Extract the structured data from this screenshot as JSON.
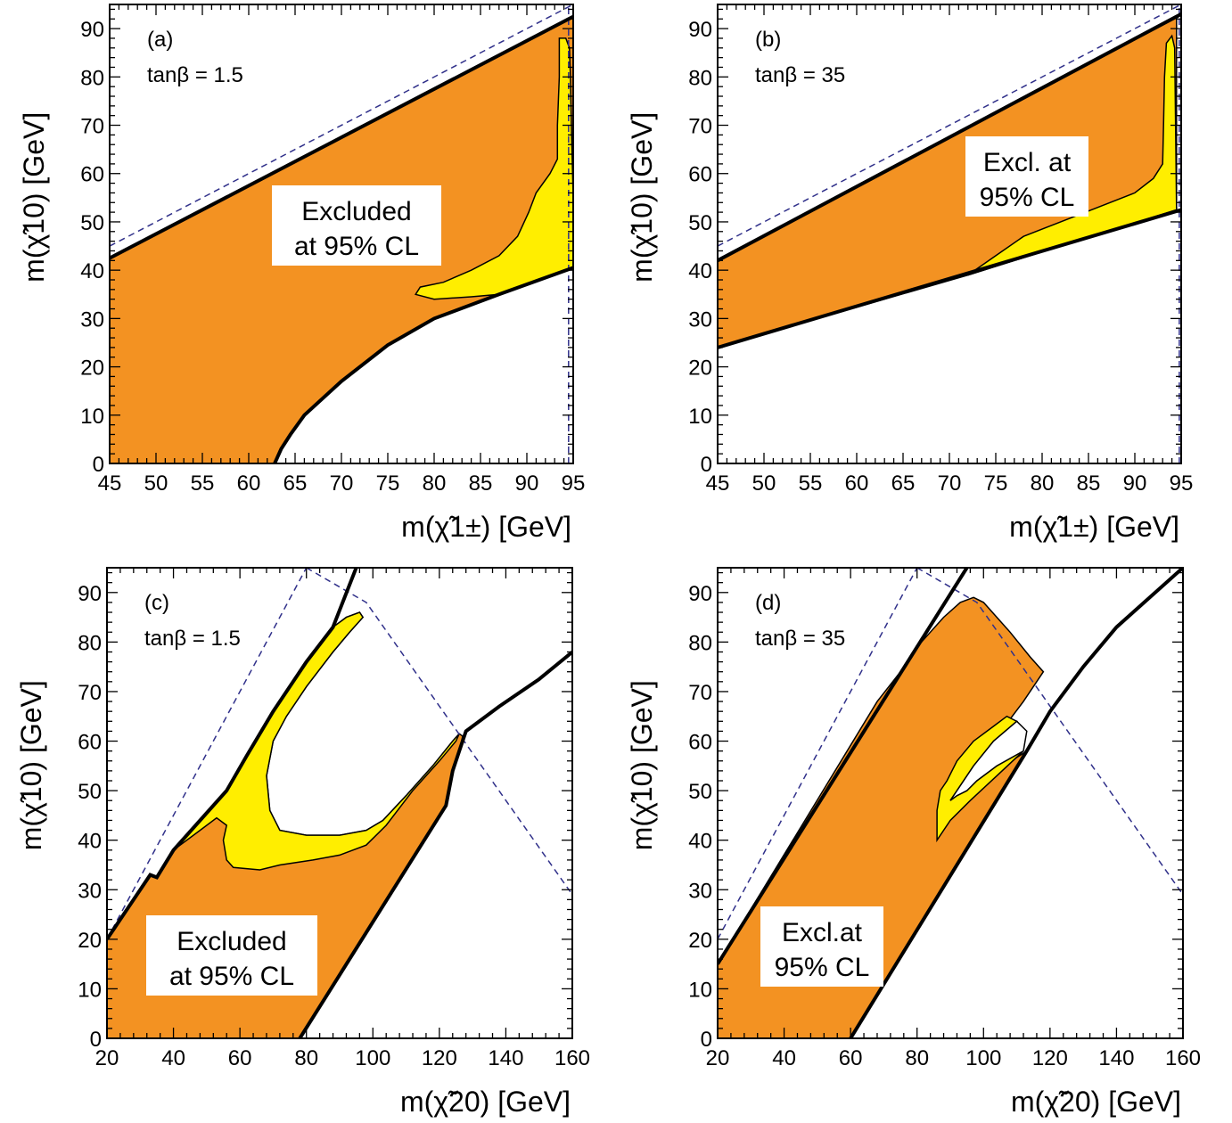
{
  "colors": {
    "excluded_fill": "#f39222",
    "yellow_fill": "#ffee00",
    "dashed_line": "#30308a",
    "boundary": "#000000"
  },
  "chart_data": [
    {
      "type": "area",
      "panel": "(a)",
      "parameter": "tanβ = 1.5",
      "annotation": [
        "Excluded",
        "at 95% CL"
      ],
      "xlabel": "m(χ̃1±) [GeV]",
      "ylabel": "m(χ̃10) [GeV]",
      "xlim": [
        45,
        95
      ],
      "ylim": [
        0,
        95
      ],
      "xticks": [
        45,
        50,
        55,
        60,
        65,
        70,
        75,
        80,
        85,
        90,
        95
      ],
      "yticks": [
        0,
        10,
        20,
        30,
        40,
        50,
        60,
        70,
        80,
        90
      ],
      "excluded_region": [
        [
          45,
          42.5
        ],
        [
          95,
          92.5
        ],
        [
          95,
          40.5
        ],
        [
          87,
          35
        ],
        [
          80,
          30
        ],
        [
          75,
          24.5
        ],
        [
          70,
          17
        ],
        [
          66,
          10
        ],
        [
          64.5,
          6
        ],
        [
          63.5,
          3
        ],
        [
          62.8,
          0
        ],
        [
          45,
          0
        ]
      ],
      "yellow_region": [
        [
          78,
          35
        ],
        [
          78.5,
          36.5
        ],
        [
          81,
          37.5
        ],
        [
          84,
          40
        ],
        [
          87,
          43
        ],
        [
          89,
          47
        ],
        [
          90.2,
          52
        ],
        [
          91,
          56
        ],
        [
          92.5,
          60
        ],
        [
          93.3,
          63
        ],
        [
          93.3,
          70
        ],
        [
          93.5,
          80
        ],
        [
          93.5,
          88
        ],
        [
          94.2,
          88
        ],
        [
          94.6,
          86
        ],
        [
          94.7,
          80
        ],
        [
          94.8,
          70
        ],
        [
          95,
          55
        ],
        [
          95,
          40.5
        ],
        [
          87,
          35
        ],
        [
          84,
          34.5
        ],
        [
          80,
          34
        ]
      ],
      "upper_line": [
        [
          45,
          42.5
        ],
        [
          95,
          92.5
        ]
      ],
      "lower_curve": [
        [
          62.8,
          0
        ],
        [
          63.5,
          3
        ],
        [
          64.5,
          6
        ],
        [
          66,
          10
        ],
        [
          70,
          17
        ],
        [
          75,
          24.5
        ],
        [
          80,
          30
        ],
        [
          87,
          35
        ],
        [
          95,
          40.5
        ]
      ],
      "dashed_lines": [
        [
          [
            45,
            45
          ],
          [
            95,
            95
          ]
        ],
        [
          [
            94.5,
            0
          ],
          [
            94.5,
            95
          ]
        ]
      ]
    },
    {
      "type": "area",
      "panel": "(b)",
      "parameter": "tanβ = 35",
      "annotation": [
        "Excl. at",
        "95% CL"
      ],
      "xlabel": "m(χ̃1±) [GeV]",
      "ylabel": "m(χ̃10) [GeV]",
      "xlim": [
        45,
        95
      ],
      "ylim": [
        0,
        95
      ],
      "xticks": [
        45,
        50,
        55,
        60,
        65,
        70,
        75,
        80,
        85,
        90,
        95
      ],
      "yticks": [
        0,
        10,
        20,
        30,
        40,
        50,
        60,
        70,
        80,
        90
      ],
      "excluded_region": [
        [
          45,
          42
        ],
        [
          94.5,
          92.5
        ],
        [
          94.5,
          52.5
        ],
        [
          72,
          39
        ],
        [
          45,
          24
        ]
      ],
      "yellow_region": [
        [
          72,
          39
        ],
        [
          75,
          43
        ],
        [
          78,
          47
        ],
        [
          82,
          50
        ],
        [
          86,
          53
        ],
        [
          90,
          56
        ],
        [
          92,
          59
        ],
        [
          93,
          62
        ],
        [
          93.1,
          70
        ],
        [
          93.2,
          80
        ],
        [
          93.4,
          87
        ],
        [
          94,
          88.5
        ],
        [
          94.3,
          86
        ],
        [
          94.5,
          52.5
        ]
      ],
      "upper_line": [
        [
          45,
          42
        ],
        [
          95,
          93
        ]
      ],
      "lower_line": [
        [
          45,
          24
        ],
        [
          95,
          52.5
        ]
      ],
      "dashed_lines": [
        [
          [
            45,
            45
          ],
          [
            95,
            95
          ]
        ],
        [
          [
            94.8,
            0
          ],
          [
            94.8,
            95
          ]
        ]
      ]
    },
    {
      "type": "area",
      "panel": "(c)",
      "parameter": "tanβ = 1.5",
      "annotation": [
        "Excluded",
        "at 95% CL"
      ],
      "xlabel": "m(χ̃20) [GeV]",
      "ylabel": "m(χ̃10) [GeV]",
      "xlim": [
        20,
        160
      ],
      "ylim": [
        0,
        95
      ],
      "xticks": [
        20,
        40,
        60,
        80,
        100,
        120,
        140,
        160
      ],
      "yticks": [
        0,
        10,
        20,
        30,
        40,
        50,
        60,
        70,
        80,
        90
      ],
      "excluded_region": [
        [
          20,
          20
        ],
        [
          33,
          33
        ],
        [
          35,
          32.5
        ],
        [
          40,
          38
        ],
        [
          48,
          44
        ],
        [
          56,
          50
        ],
        [
          62,
          57
        ],
        [
          70,
          66
        ],
        [
          80,
          76
        ],
        [
          88,
          83
        ],
        [
          92,
          85
        ],
        [
          96,
          86
        ],
        [
          97,
          85
        ],
        [
          93,
          82
        ],
        [
          88,
          78
        ],
        [
          80,
          71
        ],
        [
          74,
          65
        ],
        [
          70,
          60
        ],
        [
          68,
          53
        ],
        [
          69,
          46
        ],
        [
          72,
          42
        ],
        [
          80,
          41
        ],
        [
          90,
          41
        ],
        [
          98,
          42
        ],
        [
          103,
          44
        ],
        [
          110,
          49
        ],
        [
          118,
          55
        ],
        [
          124,
          60
        ],
        [
          126,
          61.5
        ],
        [
          127,
          61
        ],
        [
          126,
          58
        ],
        [
          124,
          54
        ],
        [
          122,
          47
        ],
        [
          78,
          0
        ],
        [
          20,
          0
        ]
      ],
      "yellow_region": [
        [
          40,
          38
        ],
        [
          48,
          44
        ],
        [
          56,
          50
        ],
        [
          62,
          57
        ],
        [
          70,
          66
        ],
        [
          80,
          76
        ],
        [
          88,
          83
        ],
        [
          92,
          85
        ],
        [
          96,
          86
        ],
        [
          97,
          85
        ],
        [
          93,
          82
        ],
        [
          88,
          78
        ],
        [
          80,
          71
        ],
        [
          74,
          65
        ],
        [
          70,
          60
        ],
        [
          68,
          53
        ],
        [
          69,
          46
        ],
        [
          72,
          42
        ],
        [
          80,
          41
        ],
        [
          90,
          41
        ],
        [
          98,
          42
        ],
        [
          103,
          44
        ],
        [
          110,
          49
        ],
        [
          118,
          55
        ],
        [
          124,
          60
        ],
        [
          126,
          61.5
        ],
        [
          125,
          60
        ],
        [
          120,
          56
        ],
        [
          112,
          50
        ],
        [
          104,
          43
        ],
        [
          98,
          39
        ],
        [
          90,
          37
        ],
        [
          82,
          36
        ],
        [
          72,
          35
        ],
        [
          66,
          34
        ],
        [
          58,
          34.5
        ],
        [
          56,
          36
        ],
        [
          55,
          40
        ],
        [
          56,
          43
        ],
        [
          53,
          44.5
        ],
        [
          48,
          42
        ]
      ],
      "upper_line": [
        [
          20,
          20
        ],
        [
          33,
          33
        ],
        [
          35,
          32.5
        ],
        [
          40,
          38
        ],
        [
          48,
          44
        ],
        [
          56,
          50
        ],
        [
          62,
          57
        ],
        [
          70,
          66
        ],
        [
          80,
          76
        ],
        [
          88,
          83
        ],
        [
          95,
          95
        ]
      ],
      "lower_line": [
        [
          78,
          0
        ],
        [
          122,
          47
        ],
        [
          124,
          54
        ],
        [
          126,
          58
        ],
        [
          128,
          62
        ],
        [
          130,
          63
        ],
        [
          138,
          67
        ],
        [
          150,
          72.5
        ],
        [
          160,
          78
        ]
      ],
      "dashed_lines": [
        [
          [
            20,
            20
          ],
          [
            80,
            95
          ]
        ],
        [
          [
            80,
            95
          ],
          [
            98,
            88
          ],
          [
            160,
            29
          ]
        ]
      ]
    },
    {
      "type": "area",
      "panel": "(d)",
      "parameter": "tanβ = 35",
      "annotation": [
        "Excl.at",
        "95% CL"
      ],
      "xlabel": "m(χ̃20) [GeV]",
      "ylabel": "m(χ̃10) [GeV]",
      "xlim": [
        20,
        160
      ],
      "ylim": [
        0,
        95
      ],
      "xticks": [
        20,
        40,
        60,
        80,
        100,
        120,
        140,
        160
      ],
      "yticks": [
        0,
        10,
        20,
        30,
        40,
        50,
        60,
        70,
        80,
        90
      ],
      "excluded_region": [
        [
          20,
          15
        ],
        [
          68,
          68
        ],
        [
          75,
          74
        ],
        [
          80,
          79
        ],
        [
          88,
          85
        ],
        [
          93,
          88
        ],
        [
          97,
          89
        ],
        [
          100,
          88
        ],
        [
          108,
          82
        ],
        [
          114,
          77
        ],
        [
          118,
          74
        ],
        [
          112,
          68
        ],
        [
          103,
          60
        ],
        [
          97,
          55
        ],
        [
          92,
          50
        ],
        [
          90,
          48
        ],
        [
          113,
          58
        ],
        [
          60,
          0
        ],
        [
          20,
          0
        ]
      ],
      "yellow_region": [
        [
          86,
          40
        ],
        [
          86,
          46
        ],
        [
          87,
          50
        ],
        [
          89,
          52
        ],
        [
          92,
          56
        ],
        [
          97,
          60
        ],
        [
          103,
          63
        ],
        [
          107,
          65
        ],
        [
          110,
          64
        ],
        [
          103,
          60
        ],
        [
          97,
          55
        ],
        [
          92,
          50
        ],
        [
          90,
          48
        ],
        [
          92,
          49
        ],
        [
          95,
          50
        ],
        [
          98,
          52
        ],
        [
          104,
          55
        ],
        [
          108,
          57
        ],
        [
          112,
          58
        ],
        [
          104,
          53
        ],
        [
          96,
          48
        ],
        [
          90,
          44
        ]
      ],
      "white_hole": [
        [
          90,
          48
        ],
        [
          92,
          50
        ],
        [
          97,
          55
        ],
        [
          103,
          60
        ],
        [
          110,
          64
        ],
        [
          113,
          62
        ],
        [
          112,
          58
        ],
        [
          104,
          55
        ],
        [
          98,
          52
        ],
        [
          95,
          50
        ],
        [
          92,
          49
        ]
      ],
      "upper_line": [
        [
          20,
          15
        ],
        [
          95,
          95
        ]
      ],
      "lower_line": [
        [
          60,
          0
        ],
        [
          113,
          58
        ],
        [
          120,
          66
        ],
        [
          130,
          75
        ],
        [
          140,
          83
        ],
        [
          160,
          95
        ]
      ],
      "dashed_lines": [
        [
          [
            20,
            20
          ],
          [
            80,
            95
          ]
        ],
        [
          [
            80,
            95
          ],
          [
            98,
            88
          ],
          [
            160,
            29
          ]
        ]
      ]
    }
  ]
}
